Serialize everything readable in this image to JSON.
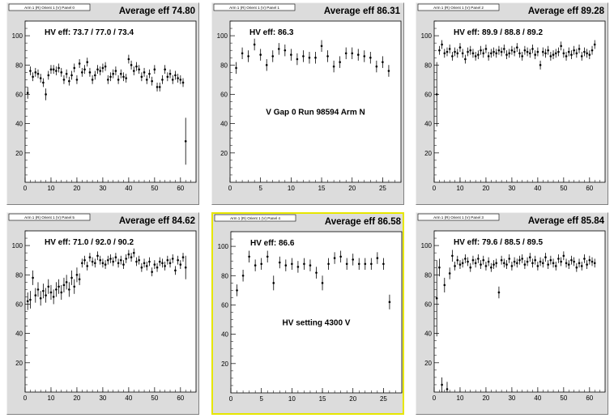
{
  "chart_data": [
    {
      "type": "scatter",
      "panel_title": "Arm 1 (R) Orient 1 (V) Panel 0",
      "average_label": "Average eff 74.80",
      "hv_label": "HV eff:   73.7 / 77.0 / 73.4",
      "annotation": "",
      "selected": false,
      "xlim": [
        0,
        66
      ],
      "ylim": [
        0,
        110
      ],
      "xticks": [
        0,
        10,
        20,
        30,
        40,
        50,
        60
      ],
      "yticks": [
        20,
        40,
        60,
        80,
        100
      ],
      "x": [
        1,
        2,
        3,
        4,
        5,
        6,
        7,
        8,
        9,
        10,
        11,
        12,
        13,
        14,
        15,
        16,
        17,
        18,
        19,
        20,
        21,
        22,
        23,
        24,
        25,
        26,
        27,
        28,
        29,
        30,
        31,
        32,
        33,
        34,
        35,
        36,
        37,
        38,
        39,
        40,
        41,
        42,
        43,
        44,
        45,
        46,
        47,
        48,
        49,
        50,
        51,
        52,
        53,
        54,
        55,
        56,
        57,
        58,
        59,
        60,
        61,
        62
      ],
      "y": [
        61,
        76,
        72,
        75,
        74,
        71,
        68,
        60,
        73,
        77,
        77,
        76,
        78,
        75,
        70,
        74,
        69,
        73,
        78,
        70,
        81,
        75,
        77,
        82,
        75,
        70,
        73,
        77,
        76,
        78,
        79,
        70,
        72,
        74,
        76,
        70,
        74,
        72,
        71,
        84,
        80,
        76,
        79,
        77,
        72,
        75,
        70,
        74,
        69,
        77,
        65,
        65,
        70,
        77,
        72,
        74,
        70,
        73,
        71,
        70,
        68,
        28
      ],
      "err": [
        4,
        3,
        3,
        3,
        3,
        3,
        3,
        4,
        3,
        3,
        3,
        3,
        3,
        3,
        3,
        3,
        3,
        3,
        3,
        3,
        3,
        3,
        3,
        3,
        3,
        3,
        3,
        3,
        3,
        3,
        3,
        3,
        3,
        3,
        3,
        3,
        3,
        3,
        3,
        3,
        3,
        3,
        3,
        3,
        3,
        3,
        3,
        3,
        3,
        3,
        3,
        3,
        3,
        3,
        3,
        3,
        3,
        3,
        3,
        3,
        3,
        16
      ]
    },
    {
      "type": "scatter",
      "panel_title": "Arm 1 (R) Orient 1 (V) Panel 1",
      "average_label": "Average eff 86.31",
      "hv_label": "HV eff:    86.3",
      "annotation": "V Gap 0 Run 98594 Arm N",
      "selected": false,
      "xlim": [
        0,
        28
      ],
      "ylim": [
        0,
        110
      ],
      "xticks": [
        0,
        5,
        10,
        15,
        20,
        25
      ],
      "yticks": [
        20,
        40,
        60,
        80,
        100
      ],
      "x": [
        1,
        2,
        3,
        4,
        5,
        6,
        7,
        8,
        9,
        10,
        11,
        12,
        13,
        14,
        15,
        16,
        17,
        18,
        19,
        20,
        21,
        22,
        23,
        24,
        25,
        26
      ],
      "y": [
        78,
        88,
        86,
        94,
        87,
        80,
        86,
        91,
        90,
        87,
        84,
        86,
        85,
        85,
        93,
        86,
        79,
        82,
        88,
        88,
        87,
        86,
        85,
        79,
        82,
        76
      ],
      "err": [
        4,
        4,
        4,
        4,
        4,
        4,
        4,
        4,
        4,
        4,
        4,
        4,
        4,
        4,
        4,
        4,
        4,
        4,
        4,
        4,
        4,
        4,
        4,
        4,
        4,
        4
      ]
    },
    {
      "type": "scatter",
      "panel_title": "Arm 1 (R) Orient 1 (V) Panel 2",
      "average_label": "Average eff 89.28",
      "hv_label": "HV eff:    89.9 / 88.8 / 89.2",
      "annotation": "",
      "selected": false,
      "xlim": [
        0,
        66
      ],
      "ylim": [
        0,
        110
      ],
      "xticks": [
        0,
        10,
        20,
        30,
        40,
        50,
        60
      ],
      "yticks": [
        20,
        40,
        60,
        80,
        100
      ],
      "x": [
        1,
        2,
        3,
        4,
        5,
        6,
        7,
        8,
        9,
        10,
        11,
        12,
        13,
        14,
        15,
        16,
        17,
        18,
        19,
        20,
        21,
        22,
        23,
        24,
        25,
        26,
        27,
        28,
        29,
        30,
        31,
        32,
        33,
        34,
        35,
        36,
        37,
        38,
        39,
        40,
        41,
        42,
        43,
        44,
        45,
        46,
        47,
        48,
        49,
        50,
        51,
        52,
        53,
        54,
        55,
        56,
        57,
        58,
        59,
        60,
        61,
        62
      ],
      "y": [
        60,
        90,
        94,
        88,
        89,
        91,
        86,
        89,
        88,
        92,
        88,
        84,
        89,
        90,
        88,
        86,
        87,
        90,
        88,
        91,
        86,
        88,
        89,
        88,
        90,
        89,
        91,
        87,
        88,
        90,
        89,
        92,
        88,
        86,
        90,
        89,
        88,
        91,
        87,
        89,
        80,
        89,
        88,
        90,
        86,
        87,
        88,
        89,
        93,
        88,
        86,
        89,
        87,
        90,
        88,
        91,
        86,
        89,
        88,
        87,
        90,
        94
      ],
      "err": [
        22,
        3,
        3,
        3,
        3,
        3,
        3,
        3,
        3,
        3,
        3,
        3,
        3,
        3,
        3,
        3,
        3,
        3,
        3,
        3,
        3,
        3,
        3,
        3,
        3,
        3,
        3,
        3,
        3,
        3,
        3,
        3,
        3,
        3,
        3,
        3,
        3,
        3,
        3,
        3,
        3,
        3,
        3,
        3,
        3,
        3,
        3,
        3,
        3,
        3,
        3,
        3,
        3,
        3,
        3,
        3,
        3,
        3,
        3,
        3,
        3,
        3
      ]
    },
    {
      "type": "scatter",
      "panel_title": "Arm 1 (R) Orient 1 (V) Panel 5",
      "average_label": "Average eff 84.62",
      "hv_label": "HV eff:   71.0 / 92.0 / 90.2",
      "annotation": "",
      "selected": false,
      "xlim": [
        0,
        66
      ],
      "ylim": [
        0,
        110
      ],
      "xticks": [
        0,
        10,
        20,
        30,
        40,
        50,
        60
      ],
      "yticks": [
        20,
        40,
        60,
        80,
        100
      ],
      "x": [
        1,
        2,
        3,
        4,
        5,
        6,
        7,
        8,
        9,
        10,
        11,
        12,
        13,
        14,
        15,
        16,
        17,
        18,
        19,
        20,
        21,
        22,
        23,
        24,
        25,
        26,
        27,
        28,
        29,
        30,
        31,
        32,
        33,
        34,
        35,
        36,
        37,
        38,
        39,
        40,
        41,
        42,
        43,
        44,
        45,
        46,
        47,
        48,
        49,
        50,
        51,
        52,
        53,
        54,
        55,
        56,
        57,
        58,
        59,
        60,
        61,
        62
      ],
      "y": [
        62,
        63,
        78,
        66,
        70,
        64,
        69,
        66,
        72,
        68,
        65,
        70,
        72,
        68,
        73,
        75,
        70,
        78,
        72,
        80,
        77,
        88,
        90,
        86,
        92,
        89,
        88,
        93,
        90,
        88,
        87,
        90,
        91,
        89,
        92,
        88,
        90,
        87,
        91,
        94,
        92,
        95,
        89,
        90,
        85,
        88,
        86,
        89,
        82,
        87,
        85,
        89,
        88,
        86,
        90,
        88,
        91,
        83,
        90,
        87,
        92,
        85
      ],
      "err": [
        6,
        6,
        5,
        5,
        5,
        5,
        5,
        5,
        5,
        5,
        5,
        5,
        5,
        5,
        5,
        5,
        5,
        5,
        5,
        5,
        4,
        3,
        3,
        3,
        3,
        3,
        3,
        3,
        3,
        3,
        3,
        3,
        3,
        3,
        3,
        3,
        3,
        3,
        3,
        3,
        3,
        3,
        3,
        3,
        3,
        3,
        3,
        3,
        3,
        3,
        3,
        3,
        3,
        3,
        3,
        3,
        3,
        3,
        3,
        3,
        3,
        8
      ]
    },
    {
      "type": "scatter",
      "panel_title": "Arm 1 (R) Orient 1 (V) Panel 4",
      "average_label": "Average eff 86.58",
      "hv_label": "HV eff:    86.6",
      "annotation": "HV setting 4300 V",
      "selected": true,
      "xlim": [
        0,
        28
      ],
      "ylim": [
        0,
        110
      ],
      "xticks": [
        0,
        5,
        10,
        15,
        20,
        25
      ],
      "yticks": [
        20,
        40,
        60,
        80,
        100
      ],
      "x": [
        1,
        2,
        3,
        4,
        5,
        6,
        7,
        8,
        9,
        10,
        11,
        12,
        13,
        14,
        15,
        16,
        17,
        18,
        19,
        20,
        21,
        22,
        23,
        24,
        25,
        26
      ],
      "y": [
        70,
        80,
        93,
        87,
        88,
        93,
        75,
        89,
        87,
        88,
        86,
        88,
        87,
        82,
        75,
        88,
        92,
        93,
        88,
        91,
        88,
        88,
        88,
        92,
        88,
        62
      ],
      "err": [
        4,
        4,
        4,
        4,
        4,
        4,
        5,
        4,
        4,
        4,
        4,
        4,
        4,
        4,
        5,
        4,
        4,
        4,
        4,
        4,
        4,
        4,
        4,
        4,
        4,
        5
      ]
    },
    {
      "type": "scatter",
      "panel_title": "Arm 1 (R) Orient 1 (V) Panel 3",
      "average_label": "Average eff 85.84",
      "hv_label": "HV eff:    79.6 / 88.5 / 89.5",
      "annotation": "",
      "selected": false,
      "xlim": [
        0,
        66
      ],
      "ylim": [
        0,
        110
      ],
      "xticks": [
        0,
        10,
        20,
        30,
        40,
        50,
        60
      ],
      "yticks": [
        20,
        40,
        60,
        80,
        100
      ],
      "x": [
        1,
        2,
        3,
        4,
        5,
        6,
        7,
        8,
        9,
        10,
        11,
        12,
        13,
        14,
        15,
        16,
        17,
        18,
        19,
        20,
        21,
        22,
        23,
        24,
        25,
        26,
        27,
        28,
        29,
        30,
        31,
        32,
        33,
        34,
        35,
        36,
        37,
        38,
        39,
        40,
        41,
        42,
        43,
        44,
        45,
        46,
        47,
        48,
        49,
        50,
        51,
        52,
        53,
        54,
        55,
        56,
        57,
        58,
        59,
        60,
        61,
        62
      ],
      "y": [
        64,
        85,
        5,
        73,
        2,
        81,
        93,
        86,
        90,
        87,
        88,
        91,
        89,
        85,
        90,
        88,
        91,
        87,
        90,
        86,
        89,
        85,
        87,
        88,
        68,
        90,
        88,
        87,
        91,
        86,
        89,
        88,
        90,
        91,
        87,
        89,
        92,
        88,
        90,
        86,
        89,
        88,
        92,
        87,
        90,
        88,
        86,
        91,
        89,
        93,
        88,
        87,
        90,
        89,
        85,
        88,
        86,
        91,
        87,
        90,
        89,
        88
      ],
      "err": [
        26,
        6,
        5,
        5,
        5,
        4,
        4,
        3,
        3,
        3,
        3,
        3,
        3,
        3,
        3,
        3,
        3,
        3,
        3,
        3,
        3,
        3,
        3,
        3,
        4,
        3,
        3,
        3,
        3,
        3,
        3,
        3,
        3,
        3,
        3,
        3,
        3,
        3,
        3,
        3,
        3,
        3,
        3,
        3,
        3,
        3,
        3,
        3,
        3,
        3,
        3,
        3,
        3,
        3,
        3,
        3,
        3,
        3,
        3,
        3,
        3,
        3
      ]
    }
  ]
}
